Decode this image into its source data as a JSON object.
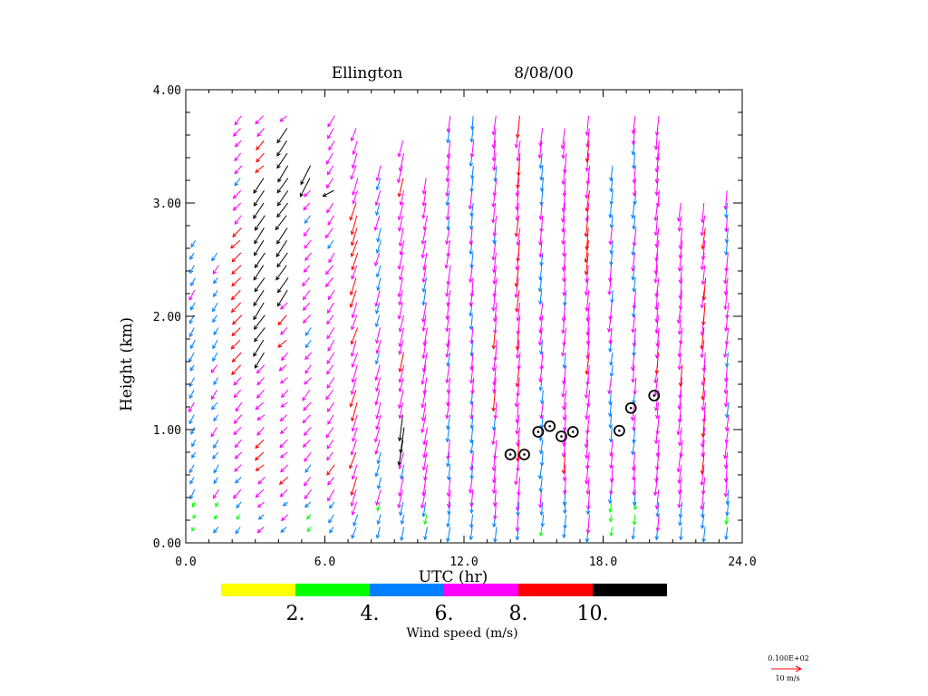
{
  "chart_data": {
    "type": "wind-profile-vector",
    "title_site": "Ellington",
    "title_date": "8/08/00",
    "xlabel": "UTC (hr)",
    "ylabel": "Height (km)",
    "xlim": [
      0,
      24
    ],
    "ylim": [
      0,
      4
    ],
    "x_ticks": [
      "0.0",
      "6.0",
      "12.0",
      "18.0",
      "24.0"
    ],
    "x_tick_values": [
      0,
      6,
      12,
      18,
      24
    ],
    "y_ticks": [
      "0.00",
      "1.00",
      "2.00",
      "3.00",
      "4.00"
    ],
    "y_tick_values": [
      0,
      1,
      2,
      3,
      4
    ],
    "colorbar": {
      "label": "Wind speed (m/s)",
      "bins": [
        {
          "color": "#ffff00",
          "range": [
            0,
            2
          ]
        },
        {
          "color": "#00ff00",
          "range": [
            2,
            4
          ]
        },
        {
          "color": "#0080ff",
          "range": [
            4,
            6
          ]
        },
        {
          "color": "#ff00ff",
          "range": [
            6,
            8
          ]
        },
        {
          "color": "#ff0000",
          "range": [
            8,
            10
          ]
        },
        {
          "color": "#000000",
          "range": [
            10,
            12
          ]
        }
      ],
      "tick_labels": [
        "2.",
        "4.",
        "6.",
        "8.",
        "10."
      ],
      "tick_values": [
        2,
        4,
        6,
        8,
        10
      ]
    },
    "reference_vector": {
      "header": "0.100E+02",
      "label": "10 m/s",
      "speed": 10,
      "color": "#ff0000"
    },
    "profiles": [
      {
        "t": 0.5,
        "top": 2.7,
        "speed": 5.0,
        "dir": 55,
        "extra": [
          [
            3.6,
            3.8,
            5.0,
            60
          ]
        ]
      },
      {
        "t": 1.5,
        "top": 2.6,
        "speed": 5.5,
        "dir": 60,
        "extra": []
      },
      {
        "t": 2.5,
        "top": 3.8,
        "speed": 6.8,
        "dir": 65,
        "extra": [
          [
            1.5,
            2.8,
            9.0,
            70
          ]
        ]
      },
      {
        "t": 3.5,
        "top": 3.8,
        "speed": 7.5,
        "dir": 70,
        "extra": [
          [
            1.6,
            3.3,
            11.0,
            60
          ]
        ]
      },
      {
        "t": 4.5,
        "top": 3.8,
        "speed": 7.5,
        "dir": 70,
        "extra": [
          [
            2.2,
            3.7,
            11.0,
            60
          ]
        ]
      },
      {
        "t": 5.5,
        "top": 3.4,
        "speed": 6.8,
        "dir": 65,
        "extra": [
          [
            3.2,
            3.8,
            11.0,
            55
          ]
        ]
      },
      {
        "t": 6.5,
        "top": 3.8,
        "speed": 7.0,
        "dir": 60,
        "extra": [
          [
            3.05,
            3.15,
            10.5,
            80
          ]
        ]
      },
      {
        "t": 7.5,
        "top": 3.7,
        "speed": 7.5,
        "dir": 40,
        "extra": []
      },
      {
        "t": 8.5,
        "top": 3.4,
        "speed": 6.0,
        "dir": 35,
        "extra": []
      },
      {
        "t": 9.5,
        "top": 3.6,
        "speed": 7.0,
        "dir": 30,
        "extra": [
          [
            0.9,
            1.2,
            10.5,
            20
          ]
        ]
      },
      {
        "t": 10.5,
        "top": 3.3,
        "speed": 7.0,
        "dir": 25,
        "extra": []
      },
      {
        "t": 11.5,
        "top": 3.8,
        "speed": 6.5,
        "dir": 20,
        "extra": []
      },
      {
        "t": 12.5,
        "top": 3.8,
        "speed": 6.0,
        "dir": 15,
        "extra": []
      },
      {
        "t": 13.5,
        "top": 3.8,
        "speed": 7.0,
        "dir": 15,
        "extra": []
      },
      {
        "t": 14.5,
        "top": 3.8,
        "speed": 7.5,
        "dir": 15,
        "extra": []
      },
      {
        "t": 15.5,
        "top": 3.7,
        "speed": 6.0,
        "dir": 15,
        "extra": []
      },
      {
        "t": 16.5,
        "top": 3.7,
        "speed": 7.0,
        "dir": 15,
        "extra": []
      },
      {
        "t": 17.5,
        "top": 3.8,
        "speed": 7.5,
        "dir": 15,
        "extra": []
      },
      {
        "t": 18.5,
        "top": 3.4,
        "speed": 5.5,
        "dir": 15,
        "extra": []
      },
      {
        "t": 19.5,
        "top": 3.8,
        "speed": 6.0,
        "dir": 15,
        "extra": []
      },
      {
        "t": 20.5,
        "top": 3.8,
        "speed": 7.0,
        "dir": 15,
        "extra": []
      },
      {
        "t": 21.5,
        "top": 3.1,
        "speed": 7.0,
        "dir": 15,
        "extra": []
      },
      {
        "t": 22.5,
        "top": 3.05,
        "speed": 7.5,
        "dir": 15,
        "extra": []
      },
      {
        "t": 23.5,
        "top": 3.2,
        "speed": 6.5,
        "dir": 15,
        "extra": []
      }
    ],
    "mixed_layer_markers": [
      {
        "t": 14.0,
        "h": 0.78
      },
      {
        "t": 14.6,
        "h": 0.78
      },
      {
        "t": 15.2,
        "h": 0.98
      },
      {
        "t": 15.7,
        "h": 1.03
      },
      {
        "t": 16.2,
        "h": 0.94
      },
      {
        "t": 16.7,
        "h": 0.98
      },
      {
        "t": 18.7,
        "h": 0.99
      },
      {
        "t": 19.2,
        "h": 1.19
      },
      {
        "t": 20.2,
        "h": 1.3
      }
    ]
  }
}
